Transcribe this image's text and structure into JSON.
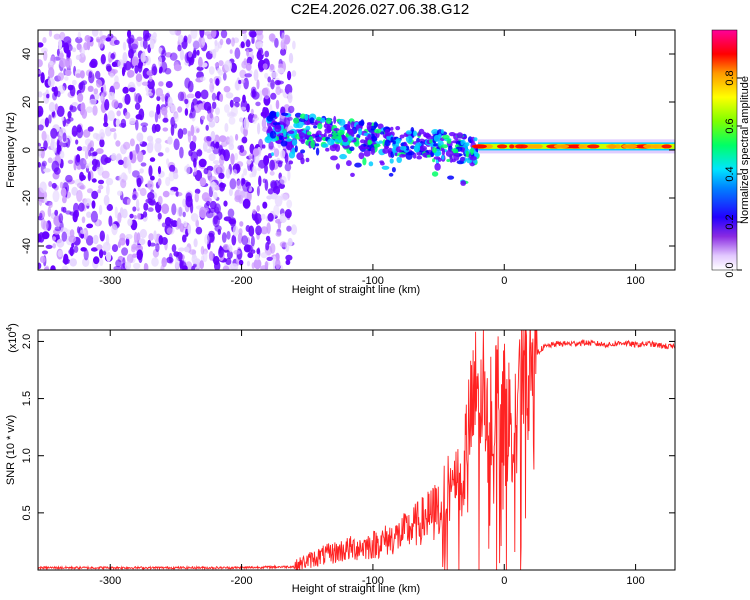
{
  "title": "C2E4.2026.027.06.38.G12",
  "chart_data": [
    {
      "type": "heatmap",
      "name": "spectrogram",
      "xlabel": "Height of straight line (km)",
      "ylabel": "Frequency (Hz)",
      "xlim": [
        -355,
        130
      ],
      "ylim": [
        -50,
        50
      ],
      "xticks": [
        -300,
        -200,
        -100,
        0,
        100
      ],
      "xtick_labels": [
        "-300",
        "-200",
        "-100",
        "0",
        "100"
      ],
      "yticks": [
        -40,
        -20,
        0,
        20,
        40
      ],
      "ytick_labels": [
        "-40",
        "-20",
        "0",
        "20",
        "40"
      ],
      "regions": [
        {
          "label": "noise",
          "x_range": [
            -355,
            -160
          ],
          "freq_range": [
            -50,
            50
          ],
          "level": "0.0-0.2"
        },
        {
          "label": "scattered signal",
          "x_range": [
            -180,
            -20
          ],
          "freq_center_start": 10,
          "freq_center_end": 0,
          "level": "0.2-0.6"
        },
        {
          "label": "stable tone",
          "x_range": [
            -20,
            130
          ],
          "freq_center": 1.5,
          "level": "0.6-1.0"
        }
      ],
      "colorbar": {
        "label": "Normalized spectral amplitude",
        "range": [
          0,
          1
        ],
        "ticks": [
          0.0,
          0.2,
          0.4,
          0.6,
          0.8
        ],
        "tick_labels": [
          "0.0",
          "0.2",
          "0.4",
          "0.6",
          "0.8"
        ],
        "colors": [
          "#ffffff",
          "#cc99ff",
          "#6600ff",
          "#0000ff",
          "#00ccff",
          "#00ff66",
          "#ccff00",
          "#ffaa00",
          "#ff0000",
          "#ff00aa"
        ]
      }
    },
    {
      "type": "line",
      "name": "snr",
      "xlabel": "Height of straight line (km)",
      "ylabel": "SNR (10 * v/v)",
      "y_multiplier": "(x10",
      "y_multiplier_exp": "4",
      "y_multiplier_close": ")",
      "xlim": [
        -355,
        130
      ],
      "ylim": [
        0,
        2.1
      ],
      "xticks": [
        -300,
        -200,
        -100,
        0,
        100
      ],
      "xtick_labels": [
        "-300",
        "-200",
        "-100",
        "0",
        "100"
      ],
      "yticks": [
        0.5,
        1.0,
        1.5,
        2.0
      ],
      "ytick_labels": [
        "0.5",
        "1.0",
        "1.5",
        "2.0"
      ],
      "color": "#ff2222",
      "x": [
        -355,
        -300,
        -250,
        -200,
        -160,
        -150,
        -140,
        -120,
        -100,
        -80,
        -60,
        -50,
        -40,
        -30,
        -25,
        -20,
        -15,
        -10,
        -5,
        0,
        5,
        10,
        15,
        20,
        25,
        30,
        40,
        50,
        60,
        80,
        90,
        100,
        110,
        120,
        130
      ],
      "y": [
        0.02,
        0.02,
        0.02,
        0.02,
        0.03,
        0.08,
        0.12,
        0.18,
        0.22,
        0.3,
        0.45,
        0.55,
        0.75,
        1.0,
        1.35,
        1.6,
        1.55,
        1.45,
        1.5,
        1.4,
        1.3,
        1.45,
        1.75,
        1.85,
        1.9,
        1.95,
        1.98,
        1.98,
        1.99,
        1.97,
        1.99,
        1.97,
        1.98,
        1.96,
        1.95
      ]
    }
  ]
}
